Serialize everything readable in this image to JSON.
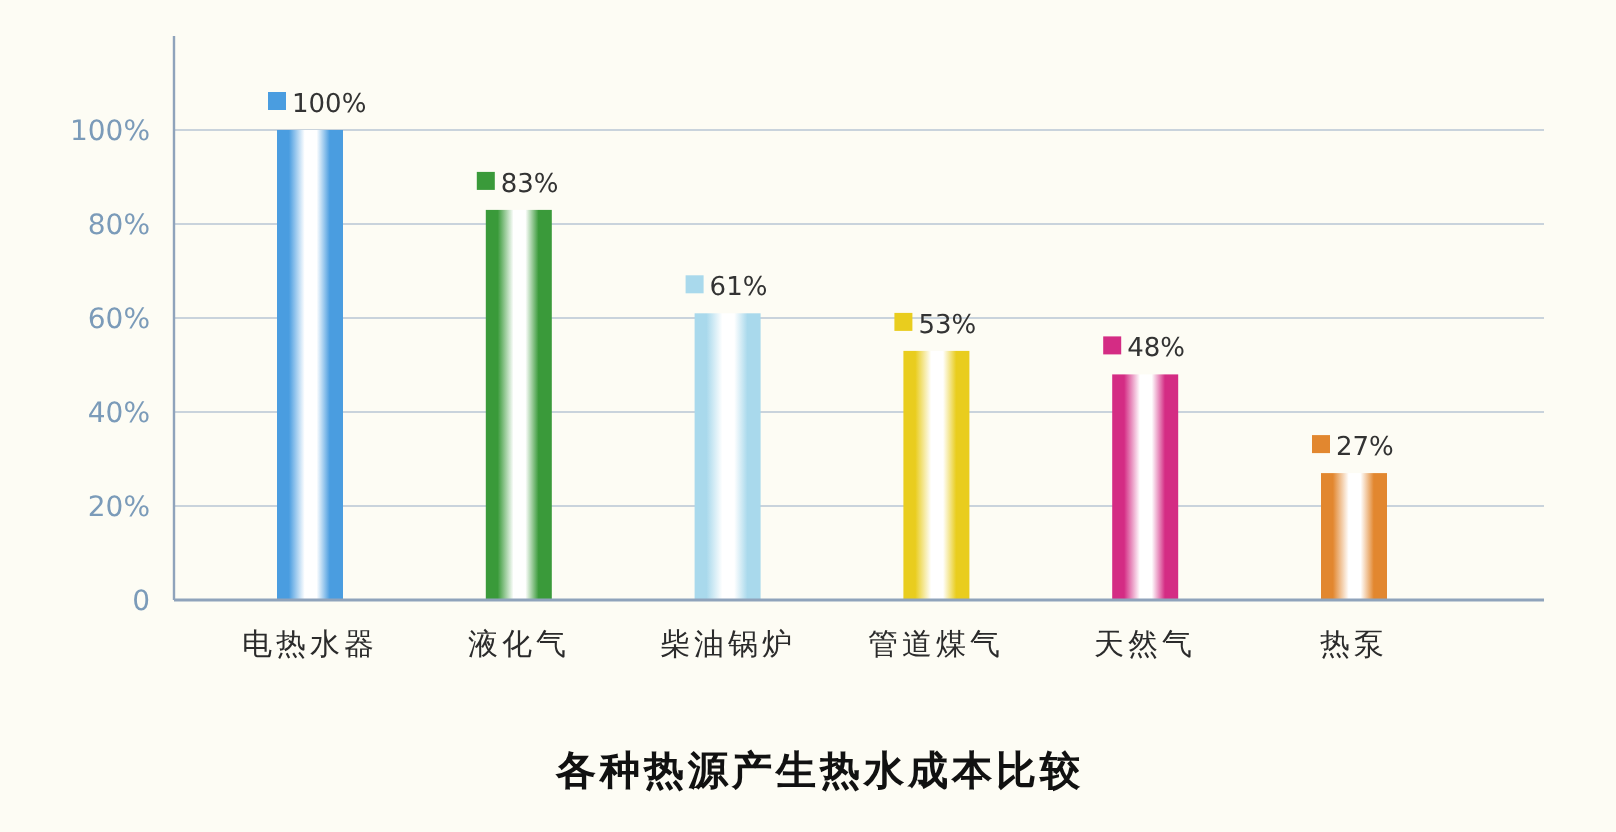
{
  "chart_data": {
    "type": "bar",
    "title": "各种热源产生热水成本比较",
    "categories": [
      "电热水器",
      "液化气",
      "柴油锅炉",
      "管道煤气",
      "天然气",
      "热泵"
    ],
    "values": [
      100,
      83,
      61,
      53,
      48,
      27
    ],
    "colors": [
      "#4a9de0",
      "#3a9a3a",
      "#a9d9ec",
      "#e9cd1e",
      "#d42c84",
      "#e2872f"
    ],
    "value_labels": [
      "100%",
      "83%",
      "61%",
      "53%",
      "48%",
      "27%"
    ],
    "ylim": [
      0,
      120
    ],
    "yticks": [
      0,
      {
        "value": 20,
        "label": "20%"
      },
      {
        "value": 40,
        "label": "40%"
      },
      {
        "value": 60,
        "label": "60%"
      },
      {
        "value": 80,
        "label": "80%"
      },
      {
        "value": 100,
        "label": "100%"
      }
    ],
    "grid": "y"
  }
}
